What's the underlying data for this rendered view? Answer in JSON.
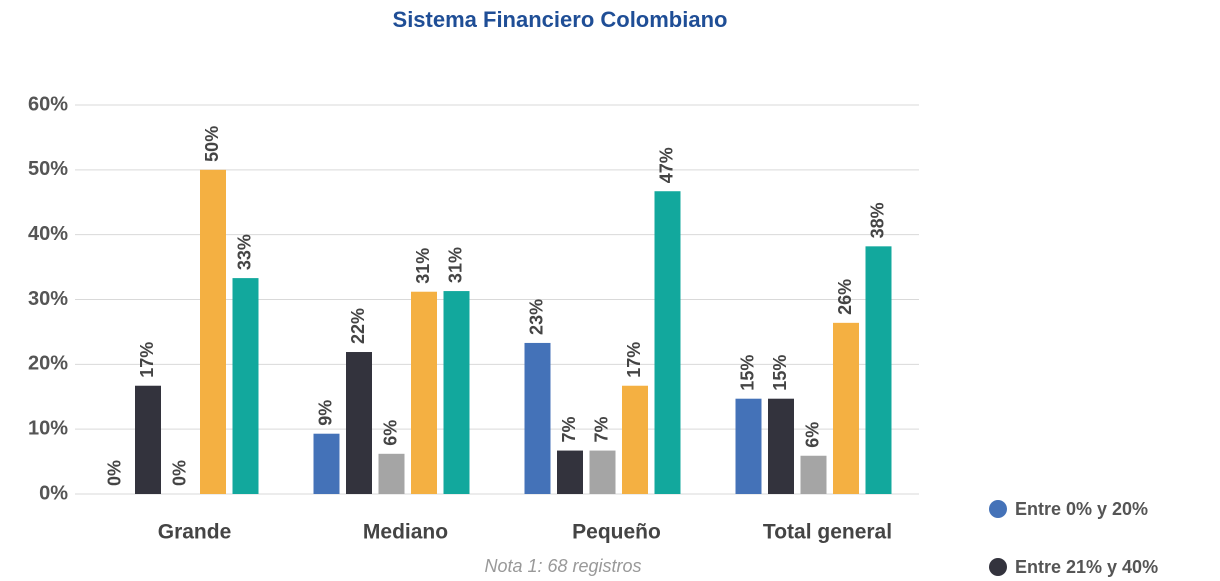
{
  "chart_data": {
    "type": "bar",
    "title": "Sistema Financiero Colombiano",
    "note": "Nota 1: 68 registros",
    "categories": [
      "Grande",
      "Mediano",
      "Pequeño",
      "Total general"
    ],
    "series": [
      {
        "name": "Entre 0% y 20%",
        "color": "#4472b8",
        "values": [
          0,
          9.3,
          23.3,
          14.7
        ],
        "value_labels": [
          "0%",
          "9%",
          "23%",
          "15%"
        ]
      },
      {
        "name": "Entre 21% y 40%",
        "color": "#33333d",
        "values": [
          16.7,
          21.9,
          6.7,
          14.7
        ],
        "value_labels": [
          "17%",
          "22%",
          "7%",
          "15%"
        ]
      },
      {
        "color": "#a5a5a5",
        "values": [
          0,
          6.2,
          6.7,
          5.9
        ],
        "value_labels": [
          "0%",
          "6%",
          "7%",
          "6%"
        ]
      },
      {
        "color": "#f4b042",
        "values": [
          50,
          31.2,
          16.7,
          26.4
        ],
        "value_labels": [
          "50%",
          "31%",
          "17%",
          "26%"
        ]
      },
      {
        "color": "#12a89d",
        "values": [
          33.3,
          31.3,
          46.7,
          38.2
        ],
        "value_labels": [
          "33%",
          "31%",
          "47%",
          "38%"
        ]
      }
    ],
    "ylim": [
      0,
      60
    ],
    "yticks": [
      {
        "value": 0,
        "label": "0%"
      },
      {
        "value": 10,
        "label": "10%"
      },
      {
        "value": 20,
        "label": "20%"
      },
      {
        "value": 30,
        "label": "30%"
      },
      {
        "value": 40,
        "label": "40%"
      },
      {
        "value": 50,
        "label": "50%"
      },
      {
        "value": 60,
        "label": "60%"
      }
    ],
    "grid": true
  }
}
